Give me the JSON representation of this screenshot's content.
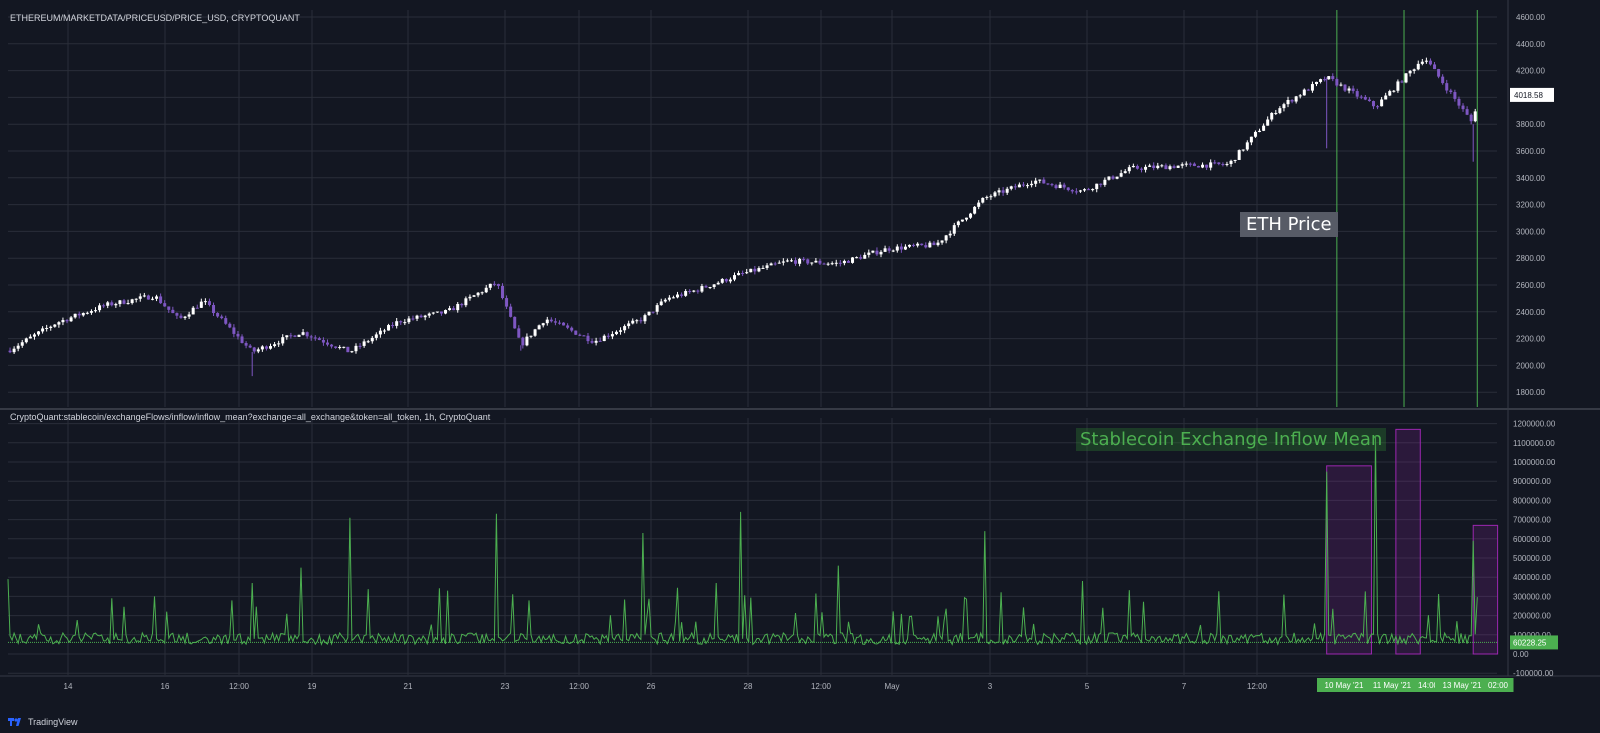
{
  "pane_titles": {
    "price": "ETHEREUM/MARKETDATA/PRICEUSD/PRICE_USD, CRYPTOQUANT",
    "inflow": "CryptoQuant:stablecoin/exchangeFlows/inflow/inflow_mean?exchange=all_exchange&token=all_token, 1h, CryptoQuant"
  },
  "annotations": {
    "price": "ETH Price",
    "inflow": "Stablecoin Exchange Inflow Mean"
  },
  "branding": "TradingView",
  "colors": {
    "background": "#131722",
    "grid": "#2a2e39",
    "candle_up": "#ffffff",
    "candle_down": "#7e57c2",
    "inflow_line": "#4caf50",
    "event_line": "#4caf50",
    "highlight_box": "#9c27b0",
    "axis_text": "#b2b5be"
  },
  "chart_data": [
    {
      "type": "candlestick",
      "title": "ETHEREUM/MARKETDATA/PRICEUSD/PRICE_USD, CRYPTOQUANT",
      "ylim": [
        1700,
        4650
      ],
      "y_ticks": [
        "4600.00",
        "4400.00",
        "4200.00",
        "4000.00",
        "3800.00",
        "3600.00",
        "3400.00",
        "3200.00",
        "3000.00",
        "2800.00",
        "2600.00",
        "2400.00",
        "2200.00",
        "2000.00",
        "1800.00"
      ],
      "last_value": "4018.58",
      "approx_close_path": [
        [
          "Apr 13",
          2110
        ],
        [
          "Apr 14",
          2320
        ],
        [
          "Apr 15",
          2450
        ],
        [
          "Apr 16",
          2520
        ],
        [
          "Apr 16 12:00",
          2340
        ],
        [
          "Apr 17",
          2480
        ],
        [
          "Apr 18",
          2100
        ],
        [
          "Apr 19",
          2250
        ],
        [
          "Apr 20",
          2100
        ],
        [
          "Apr 21",
          2330
        ],
        [
          "Apr 22",
          2400
        ],
        [
          "Apr 23",
          2620
        ],
        [
          "Apr 23 12:00",
          2150
        ],
        [
          "Apr 24",
          2350
        ],
        [
          "Apr 25",
          2180
        ],
        [
          "Apr 26",
          2350
        ],
        [
          "Apr 26 12:00",
          2500
        ],
        [
          "Apr 27",
          2550
        ],
        [
          "Apr 28",
          2680
        ],
        [
          "Apr 29",
          2780
        ],
        [
          "Apr 30",
          2760
        ],
        [
          "May 1",
          2870
        ],
        [
          "May 2",
          2900
        ],
        [
          "May 3",
          3250
        ],
        [
          "May 4",
          3380
        ],
        [
          "May 5",
          3300
        ],
        [
          "May 6",
          3470
        ],
        [
          "May 7",
          3490
        ],
        [
          "May 8",
          3500
        ],
        [
          "May 9",
          3920
        ],
        [
          "May 10",
          4150
        ],
        [
          "May 11",
          3930
        ],
        [
          "May 12",
          4300
        ],
        [
          "May 13",
          3800
        ],
        [
          "May 13 02:00",
          4018.58
        ]
      ],
      "event_markers": [
        "10 May '21",
        "11 May '21 14:00",
        "13 May '21 02:00"
      ]
    },
    {
      "type": "line",
      "title": "CryptoQuant:stablecoin/exchangeFlows/inflow/inflow_mean?exchange=all_exchange&token=all_token, 1h, CryptoQuant",
      "ylim": [
        -100000,
        1200000
      ],
      "y_ticks": [
        "1200000.00",
        "1100000.00",
        "1000000.00",
        "900000.00",
        "800000.00",
        "700000.00",
        "600000.00",
        "500000.00",
        "400000.00",
        "300000.00",
        "200000.00",
        "100000.00",
        "0.00",
        "-100000.00"
      ],
      "last_value": "60228.25",
      "notable_spikes": [
        [
          "Apr 13",
          390000
        ],
        [
          "Apr 16",
          300000
        ],
        [
          "Apr 18",
          370000
        ],
        [
          "Apr 19",
          450000
        ],
        [
          "Apr 20",
          710000
        ],
        [
          "Apr 22",
          330000
        ],
        [
          "Apr 23",
          730000
        ],
        [
          "Apr 26",
          630000
        ],
        [
          "Apr 27 12:00",
          370000
        ],
        [
          "Apr 28",
          740000
        ],
        [
          "Apr 30",
          460000
        ],
        [
          "May 3",
          640000
        ],
        [
          "May 5",
          380000
        ],
        [
          "May 10",
          950000
        ],
        [
          "May 11",
          1130000
        ],
        [
          "May 13",
          590000
        ]
      ],
      "highlight_ranges": [
        {
          "from": "May 10",
          "to": "May 10 22:00",
          "ymax": 980000
        },
        {
          "from": "May 11 10:00",
          "to": "May 11 22:00",
          "ymax": 1170000
        },
        {
          "from": "May 13",
          "to": "May 13 12:00",
          "ymax": 670000
        }
      ]
    }
  ],
  "x_axis": {
    "tick_labels": [
      "14",
      "16",
      "12:00",
      "19",
      "21",
      "23",
      "12:00",
      "26",
      "28",
      "12:00",
      "May",
      "3",
      "5",
      "7",
      "12:00"
    ],
    "event_labels": [
      "10 May '21",
      "11 May '21",
      "14:00",
      "13 May '21",
      "02:00"
    ]
  }
}
